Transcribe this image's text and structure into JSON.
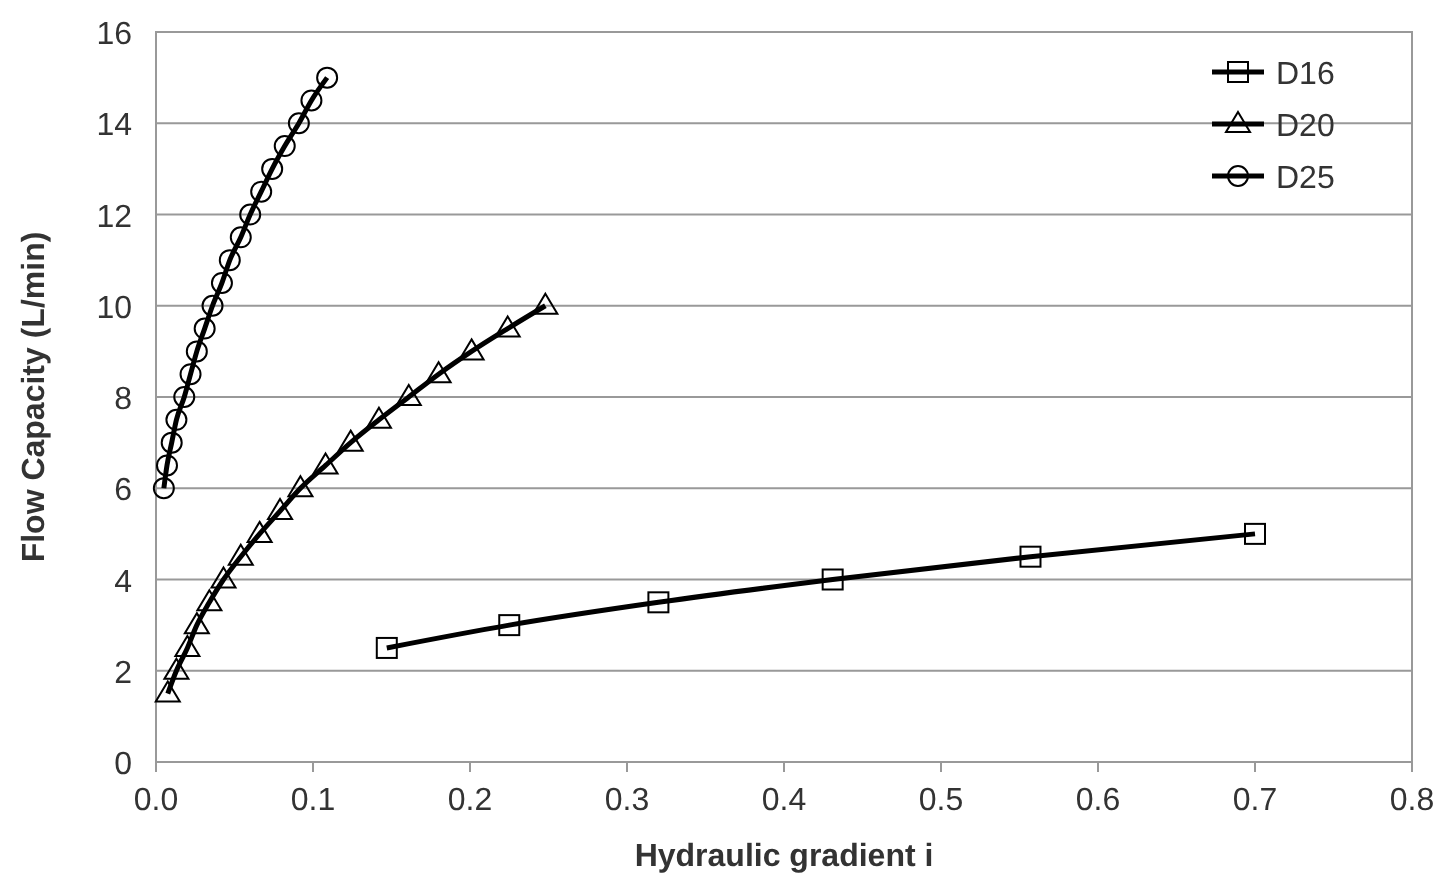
{
  "chart_data": {
    "type": "line",
    "xlabel": "Hydraulic gradient i",
    "ylabel": "Flow Capacity (L/min)",
    "xlim": [
      0,
      0.8
    ],
    "xticks": [
      {
        "value": 0,
        "label": "0.0"
      },
      0.1,
      0.2,
      0.3,
      0.4,
      0.5,
      0.6,
      0.7,
      0.8
    ],
    "ylim": [
      0,
      16
    ],
    "yticks": [
      0,
      2,
      4,
      6,
      8,
      10,
      12,
      14,
      16
    ],
    "grid": "y",
    "legend": "top right",
    "line_style": "solid",
    "series": [
      {
        "name": "D16",
        "color": "#000000",
        "marker": "square",
        "x": [
          0.147,
          0.225,
          0.32,
          0.431,
          0.557,
          0.7
        ],
        "values": [
          2.5,
          3,
          3.5,
          4,
          4.5,
          5
        ]
      },
      {
        "name": "D20",
        "color": "#000000",
        "marker": "triangle",
        "x": [
          0.0075,
          0.013,
          0.02,
          0.026,
          0.034,
          0.043,
          0.054,
          0.066,
          0.079,
          0.092,
          0.108,
          0.124,
          0.142,
          0.161,
          0.18,
          0.201,
          0.224,
          0.248
        ],
        "values": [
          1.5,
          2,
          2.5,
          3,
          3.5,
          4,
          4.5,
          5,
          5.5,
          6,
          6.5,
          7,
          7.5,
          8,
          8.5,
          9,
          9.5,
          10
        ]
      },
      {
        "name": "D25",
        "color": "#000000",
        "marker": "circle",
        "x": [
          0.005,
          0.007,
          0.01,
          0.013,
          0.018,
          0.022,
          0.026,
          0.031,
          0.036,
          0.042,
          0.047,
          0.054,
          0.06,
          0.067,
          0.074,
          0.082,
          0.091,
          0.099,
          0.109
        ],
        "values": [
          6,
          6.5,
          7,
          7.5,
          8,
          8.5,
          9,
          9.5,
          10,
          10.5,
          11,
          11.5,
          12,
          12.5,
          13,
          13.5,
          14,
          14.5,
          15
        ]
      }
    ]
  }
}
